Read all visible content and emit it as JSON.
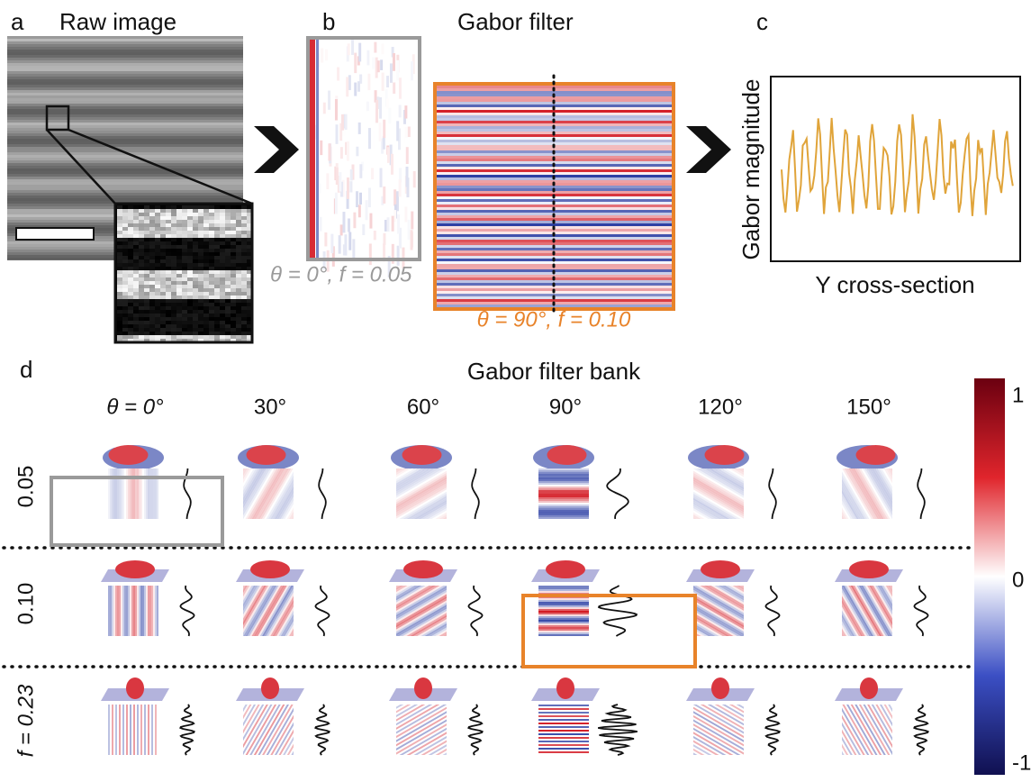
{
  "panels": {
    "a": {
      "label": "a",
      "title": "Raw image"
    },
    "b": {
      "label": "b",
      "title": "Gabor filter",
      "back_caption": "θ = 0°, f = 0.05",
      "front_caption": "θ = 90°, f = 0.10"
    },
    "c": {
      "label": "c",
      "y_label": "Gabor magnitude",
      "x_label": "Y cross-section"
    },
    "d": {
      "label": "d",
      "title": "Gabor filter bank",
      "columns": [
        "θ = 0°",
        "30°",
        "60°",
        "90°",
        "120°",
        "150°"
      ],
      "rows": [
        "0.05",
        "0.10",
        "f = 0.23"
      ],
      "colorbar_ticks": [
        1,
        0,
        -1
      ]
    }
  }
}
